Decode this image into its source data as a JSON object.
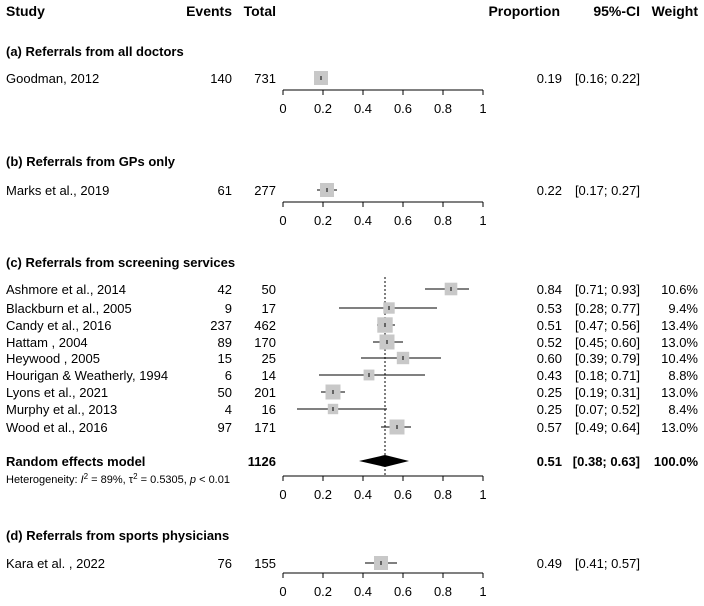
{
  "header": {
    "study": "Study",
    "events": "Events",
    "total": "Total",
    "proportion": "Proportion",
    "ci": "95%-CI",
    "weight": "Weight"
  },
  "chart_data": {
    "type": "forest",
    "xlim": [
      0,
      1
    ],
    "x_ticks": [
      "0",
      "0.2",
      "0.4",
      "0.6",
      "0.8",
      "1"
    ],
    "reference_line": 0.51,
    "subgroups": [
      {
        "title": "(a) Referrals from all doctors",
        "studies": [
          {
            "study": "Goodman, 2012",
            "events": "140",
            "total": "731",
            "prop": 0.19,
            "lo": 0.16,
            "hi": 0.22,
            "prop_text": "0.19",
            "ci_text": "[0.16; 0.22]",
            "weight": ""
          }
        ]
      },
      {
        "title": "(b) Referrals from GPs only",
        "studies": [
          {
            "study": "Marks et al., 2019",
            "events": "61",
            "total": "277",
            "prop": 0.22,
            "lo": 0.17,
            "hi": 0.27,
            "prop_text": "0.22",
            "ci_text": "[0.17; 0.27]",
            "weight": ""
          }
        ]
      },
      {
        "title": "(c) Referrals from screening services",
        "studies": [
          {
            "study": "Ashmore et al., 2014",
            "events": "42",
            "total": "50",
            "prop": 0.84,
            "lo": 0.71,
            "hi": 0.93,
            "prop_text": "0.84",
            "ci_text": "[0.71; 0.93]",
            "weight": "10.6%"
          },
          {
            "study": "Blackburn et al., 2005",
            "events": "9",
            "total": "17",
            "prop": 0.53,
            "lo": 0.28,
            "hi": 0.77,
            "prop_text": "0.53",
            "ci_text": "[0.28; 0.77]",
            "weight": "9.4%"
          },
          {
            "study": "Candy et al., 2016",
            "events": "237",
            "total": "462",
            "prop": 0.51,
            "lo": 0.47,
            "hi": 0.56,
            "prop_text": "0.51",
            "ci_text": "[0.47; 0.56]",
            "weight": "13.4%"
          },
          {
            "study": "Hattam , 2004",
            "events": "89",
            "total": "170",
            "prop": 0.52,
            "lo": 0.45,
            "hi": 0.6,
            "prop_text": "0.52",
            "ci_text": "[0.45; 0.60]",
            "weight": "13.0%"
          },
          {
            "study": "Heywood , 2005",
            "events": "15",
            "total": "25",
            "prop": 0.6,
            "lo": 0.39,
            "hi": 0.79,
            "prop_text": "0.60",
            "ci_text": "[0.39; 0.79]",
            "weight": "10.4%"
          },
          {
            "study": "Hourigan & Weatherly, 1994",
            "events": "6",
            "total": "14",
            "prop": 0.43,
            "lo": 0.18,
            "hi": 0.71,
            "prop_text": "0.43",
            "ci_text": "[0.18; 0.71]",
            "weight": "8.8%"
          },
          {
            "study": "Lyons et al., 2021",
            "events": "50",
            "total": "201",
            "prop": 0.25,
            "lo": 0.19,
            "hi": 0.31,
            "prop_text": "0.25",
            "ci_text": "[0.19; 0.31]",
            "weight": "13.0%"
          },
          {
            "study": "Murphy et al., 2013",
            "events": "4",
            "total": "16",
            "prop": 0.25,
            "lo": 0.07,
            "hi": 0.52,
            "prop_text": "0.25",
            "ci_text": "[0.07; 0.52]",
            "weight": "8.4%"
          },
          {
            "study": "Wood et al., 2016",
            "events": "97",
            "total": "171",
            "prop": 0.57,
            "lo": 0.49,
            "hi": 0.64,
            "prop_text": "0.57",
            "ci_text": "[0.49; 0.64]",
            "weight": "13.0%"
          }
        ],
        "model": {
          "label": "Random effects model",
          "total": "1126",
          "prop": 0.51,
          "lo": 0.38,
          "hi": 0.63,
          "prop_text": "0.51",
          "ci_text": "[0.38; 0.63]",
          "weight": "100.0%"
        },
        "heterogeneity": {
          "prefix": "Heterogeneity: ",
          "i2_sym": "I",
          "i2_sup": "2",
          "i2_val": " = 89%, ",
          "tau_sym": "τ",
          "tau_sup": "2",
          "tau_val": " = 0.5305, ",
          "p_sym": "p",
          "p_val": " < 0.01"
        }
      },
      {
        "title": "(d) Referrals from sports physicians",
        "studies": [
          {
            "study": "Kara et al. , 2022",
            "events": "76",
            "total": "155",
            "prop": 0.49,
            "lo": 0.41,
            "hi": 0.57,
            "prop_text": "0.49",
            "ci_text": "[0.41; 0.57]",
            "weight": ""
          }
        ]
      }
    ]
  },
  "colors": {
    "box": "#c8c8c8",
    "line": "#000000",
    "diamond": "#000000",
    "text": "#000000"
  }
}
